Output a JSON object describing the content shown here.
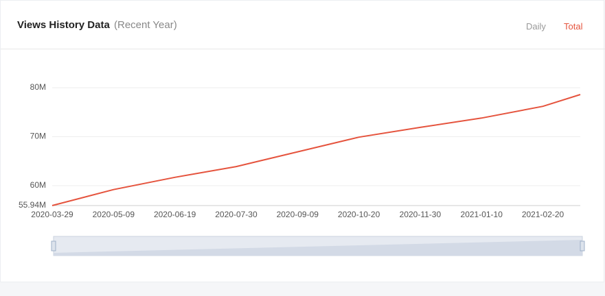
{
  "header": {
    "title": "Views History Data",
    "subtitle": "(Recent Year)",
    "tabs": [
      "Daily",
      "Total"
    ]
  },
  "chart_data": {
    "type": "line",
    "color": "#e5533d",
    "x": [
      "2020-03-29",
      "2020-05-09",
      "2020-06-19",
      "2020-07-30",
      "2020-09-09",
      "2020-10-20",
      "2020-11-30",
      "2021-01-10",
      "2021-02-20",
      "2021-03-17"
    ],
    "values": [
      55.94,
      59.2,
      61.7,
      63.9,
      66.9,
      69.9,
      71.9,
      73.8,
      76.2,
      78.6
    ],
    "xlim": [
      "2020-03-29",
      "2021-03-17"
    ],
    "xticks": [
      "2020-03-29",
      "2020-05-09",
      "2020-06-19",
      "2020-07-30",
      "2020-09-09",
      "2020-10-20",
      "2020-11-30",
      "2021-01-10",
      "2021-02-20"
    ],
    "ylim": [
      55.94,
      80
    ],
    "yticks": [
      {
        "value": 55.94,
        "label": "55.94M"
      },
      {
        "value": 60,
        "label": "60M"
      },
      {
        "value": 70,
        "label": "70M"
      },
      {
        "value": 80,
        "label": "80M"
      }
    ],
    "grid": true
  }
}
